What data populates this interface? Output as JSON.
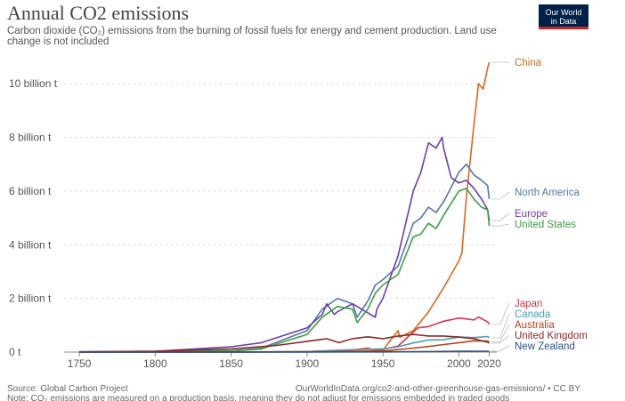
{
  "header": {
    "title": "Annual CO2 emissions",
    "subtitle": "Carbon dioxide (CO₂) emissions from the burning of fossil fuels for energy and cement production. Land use change is not included",
    "logo_line1": "Our World",
    "logo_line2": "in Data"
  },
  "footer": {
    "source": "Source: Global Carbon Project",
    "url": "OurWorldInData.org/co2-and-other-greenhouse-gas-emissions/ • CC BY",
    "note": "Note: CO₂ emissions are measured on a production basis, meaning they do not adjust for emissions embedded in traded goods"
  },
  "chart_data": {
    "type": "line",
    "title": "Annual CO2 emissions",
    "xlim": [
      1740,
      2025
    ],
    "ylim": [
      0,
      10.8
    ],
    "x_ticks": [
      1750,
      1800,
      1850,
      1900,
      1950,
      2000,
      2020
    ],
    "y_ticks": [
      {
        "value": 0,
        "label": "0 t"
      },
      {
        "value": 2,
        "label": "2 billion t"
      },
      {
        "value": 4,
        "label": "4 billion t"
      },
      {
        "value": 6,
        "label": "6 billion t"
      },
      {
        "value": 8,
        "label": "8 billion t"
      },
      {
        "value": 10,
        "label": "10 billion t"
      }
    ],
    "grid": "horizontal dotted",
    "colors": {
      "China": "#d06a24",
      "North America": "#5677a8",
      "Europe": "#6a3fa3",
      "United States": "#3f9b4a",
      "Japan": "#d0374e",
      "Canada": "#4a9fb0",
      "Australia": "#b6421d",
      "United Kingdom": "#8a2a2a",
      "New Zealand": "#2d4f8a"
    },
    "series": [
      {
        "name": "China",
        "x": [
          1750,
          1900,
          1940,
          1950,
          1960,
          1961,
          1970,
          1980,
          1990,
          2000,
          2002,
          2005,
          2010,
          2013,
          2016,
          2019,
          2020
        ],
        "y": [
          0,
          0.01,
          0.03,
          0.08,
          0.8,
          0.55,
          0.8,
          1.5,
          2.4,
          3.4,
          3.7,
          5.8,
          8.5,
          10.0,
          9.8,
          10.6,
          10.8
        ]
      },
      {
        "name": "North America",
        "x": [
          1750,
          1800,
          1850,
          1870,
          1900,
          1910,
          1920,
          1930,
          1933,
          1940,
          1945,
          1950,
          1960,
          1970,
          1975,
          1980,
          1985,
          1990,
          2000,
          2005,
          2010,
          2015,
          2019,
          2020
        ],
        "y": [
          0,
          0.01,
          0.05,
          0.15,
          0.8,
          1.6,
          2.0,
          1.8,
          1.3,
          1.9,
          2.5,
          2.7,
          3.2,
          4.8,
          5.0,
          5.4,
          5.2,
          5.6,
          6.7,
          7.0,
          6.6,
          6.4,
          6.2,
          5.7
        ]
      },
      {
        "name": "Europe",
        "x": [
          1750,
          1800,
          1850,
          1870,
          1900,
          1910,
          1913,
          1918,
          1920,
          1930,
          1945,
          1946,
          1950,
          1960,
          1970,
          1975,
          1980,
          1985,
          1989,
          1990,
          1995,
          2000,
          2005,
          2010,
          2015,
          2019,
          2020
        ],
        "y": [
          0.01,
          0.03,
          0.2,
          0.35,
          0.9,
          1.4,
          1.8,
          1.4,
          1.5,
          1.8,
          1.3,
          1.6,
          2.0,
          3.6,
          6.0,
          6.7,
          7.8,
          7.6,
          8.0,
          7.6,
          6.5,
          6.3,
          6.4,
          6.1,
          5.7,
          5.3,
          4.9
        ]
      },
      {
        "name": "United States",
        "x": [
          1750,
          1800,
          1850,
          1870,
          1900,
          1910,
          1920,
          1930,
          1933,
          1940,
          1945,
          1950,
          1960,
          1970,
          1975,
          1980,
          1985,
          1990,
          2000,
          2005,
          2010,
          2015,
          2019,
          2020
        ],
        "y": [
          0,
          0.005,
          0.04,
          0.12,
          0.66,
          1.3,
          1.7,
          1.6,
          1.1,
          1.6,
          2.2,
          2.5,
          2.9,
          4.3,
          4.4,
          4.8,
          4.6,
          5.1,
          6.0,
          6.1,
          5.7,
          5.4,
          5.3,
          4.7
        ]
      },
      {
        "name": "Japan",
        "x": [
          1750,
          1850,
          1900,
          1930,
          1940,
          1945,
          1950,
          1960,
          1970,
          1973,
          1980,
          1990,
          2000,
          2010,
          2013,
          2019,
          2020
        ],
        "y": [
          0,
          0.0,
          0.02,
          0.08,
          0.15,
          0.06,
          0.1,
          0.23,
          0.75,
          0.9,
          0.95,
          1.15,
          1.27,
          1.2,
          1.31,
          1.12,
          1.03
        ]
      },
      {
        "name": "Canada",
        "x": [
          1750,
          1850,
          1900,
          1920,
          1950,
          1960,
          1970,
          1980,
          1990,
          2000,
          2010,
          2019,
          2020
        ],
        "y": [
          0,
          0.0,
          0.02,
          0.07,
          0.12,
          0.2,
          0.34,
          0.45,
          0.46,
          0.56,
          0.54,
          0.58,
          0.53
        ]
      },
      {
        "name": "Australia",
        "x": [
          1750,
          1850,
          1900,
          1950,
          1970,
          1980,
          1990,
          2000,
          2010,
          2019,
          2020
        ],
        "y": [
          0,
          0.0,
          0.01,
          0.04,
          0.15,
          0.21,
          0.28,
          0.35,
          0.42,
          0.41,
          0.39
        ]
      },
      {
        "name": "United Kingdom",
        "x": [
          1750,
          1800,
          1850,
          1880,
          1900,
          1913,
          1921,
          1930,
          1940,
          1950,
          1960,
          1970,
          1980,
          1990,
          2000,
          2010,
          2015,
          2019,
          2020
        ],
        "y": [
          0.01,
          0.03,
          0.12,
          0.25,
          0.4,
          0.5,
          0.35,
          0.5,
          0.57,
          0.5,
          0.6,
          0.66,
          0.6,
          0.6,
          0.56,
          0.5,
          0.42,
          0.37,
          0.33
        ]
      },
      {
        "name": "New Zealand",
        "x": [
          1750,
          1900,
          1950,
          1980,
          2000,
          2020
        ],
        "y": [
          0,
          0.002,
          0.006,
          0.02,
          0.03,
          0.032
        ]
      }
    ],
    "legend_placement": "right, at line ends"
  }
}
